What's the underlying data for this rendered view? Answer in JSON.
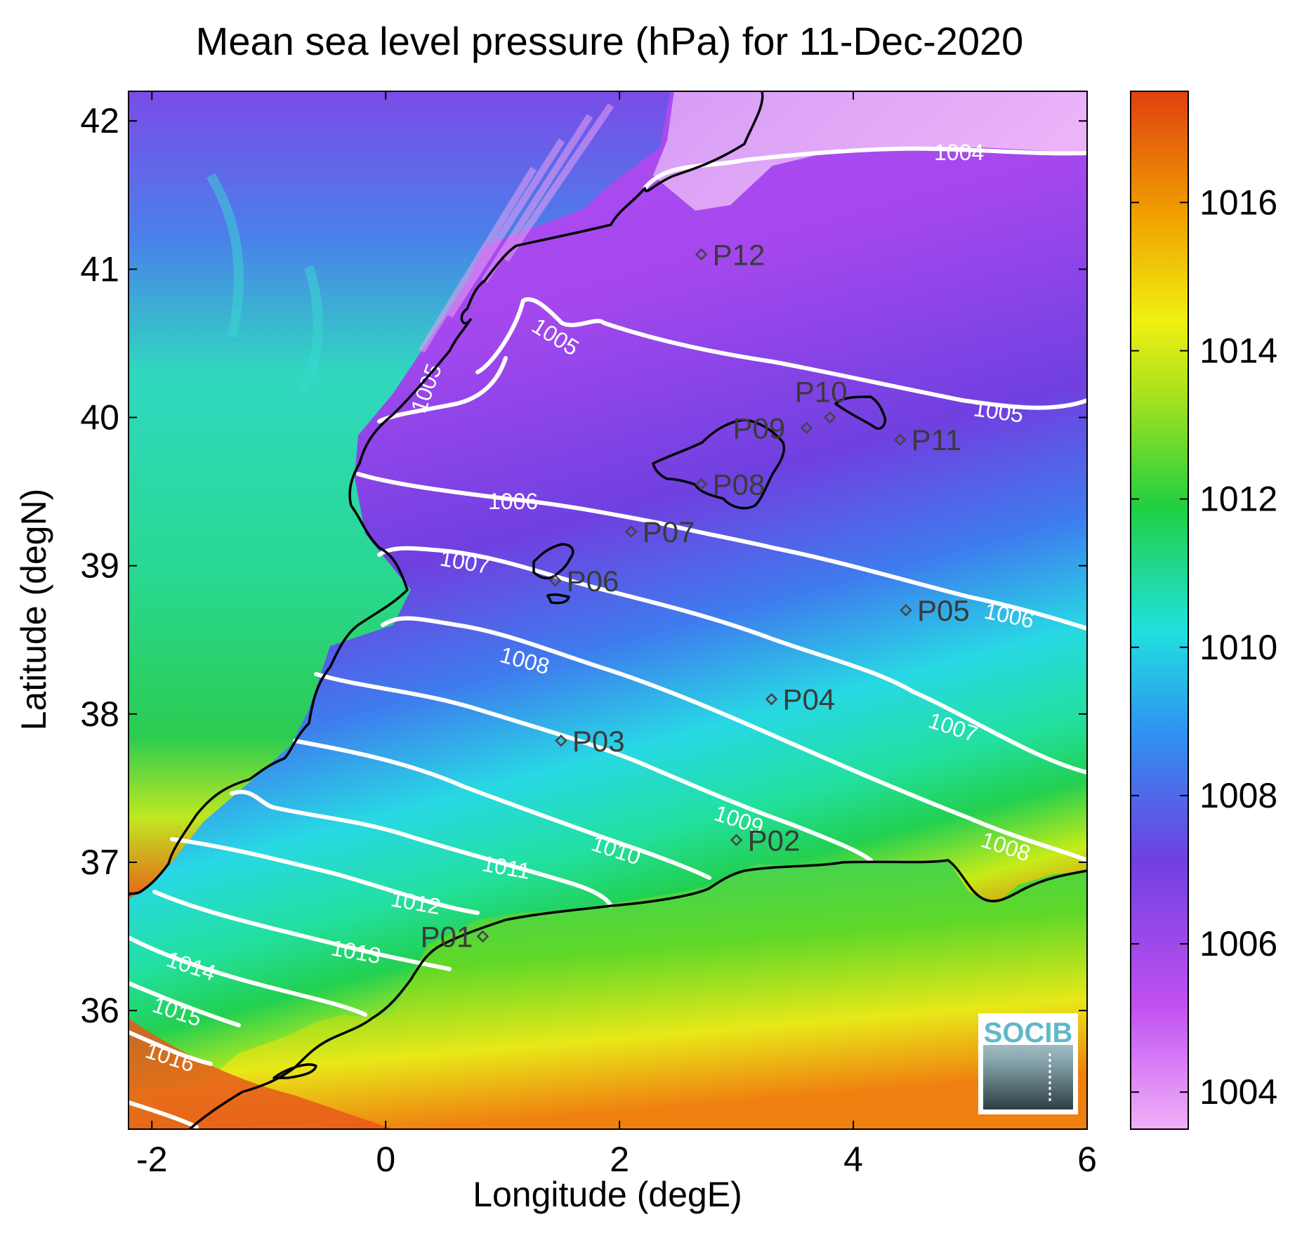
{
  "figure": {
    "title": "Mean sea level pressure (hPa) for 11-Dec-2020",
    "xlabel": "Longitude (degE)",
    "ylabel": "Latitude (degN)",
    "xlim": [
      -2.2,
      6
    ],
    "ylim": [
      35.2,
      42.2
    ],
    "xticks": [
      "-2",
      "0",
      "2",
      "4",
      "6"
    ],
    "yticks": [
      "36",
      "37",
      "38",
      "39",
      "40",
      "41",
      "42"
    ]
  },
  "colorbar": {
    "range": [
      1003.5,
      1017.5
    ],
    "ticks": [
      "1004",
      "1006",
      "1008",
      "1010",
      "1012",
      "1014",
      "1016"
    ],
    "colors": [
      "#f0b0f8",
      "#c050f0",
      "#7040e0",
      "#3090f0",
      "#20e0e0",
      "#20d040",
      "#a0e020",
      "#f0f010",
      "#f0a000",
      "#e04010"
    ]
  },
  "contour_labels": [
    "1004",
    "1005",
    "1005",
    "1005",
    "1006",
    "1006",
    "1007",
    "1007",
    "1008",
    "1008",
    "1009",
    "1010",
    "1011",
    "1012",
    "1013",
    "1014",
    "1015",
    "1016"
  ],
  "stations": [
    {
      "label": "P01"
    },
    {
      "label": "P02"
    },
    {
      "label": "P03"
    },
    {
      "label": "P04"
    },
    {
      "label": "P05"
    },
    {
      "label": "P06"
    },
    {
      "label": "P07"
    },
    {
      "label": "P08"
    },
    {
      "label": "P09"
    },
    {
      "label": "P10"
    },
    {
      "label": "P11"
    },
    {
      "label": "P12"
    }
  ],
  "logo": {
    "text": "SOCIB"
  }
}
